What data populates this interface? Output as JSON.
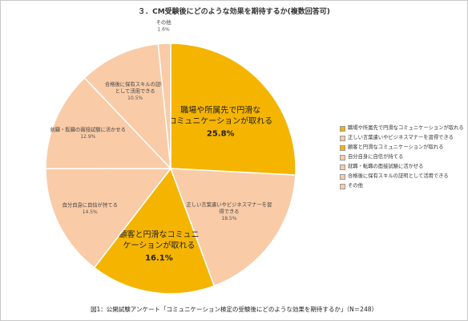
{
  "chart_data": {
    "type": "pie",
    "title": "３．CM受験後にどのような効果を期待するか(複数回答可)",
    "caption": "図1：公開試験アンケート「コミュニケーション検定の受験後にどのような効果を期待するか」（N＝248）",
    "legend_position": "right",
    "slices": [
      {
        "label": "職場や所属先で円滑なコミュニケーションが取れる",
        "display_label": "職場や所属先で円滑な\nコミュニケーションが取れる",
        "value": 25.8,
        "value_label": "25.8%",
        "color": "#f4b400",
        "highlight": true
      },
      {
        "label": "正しい言葉遣いやビジネスマナーを習得できる",
        "display_label": "正しい言葉遣いやビジネスマナーを習\n得できる",
        "value": 18.5,
        "value_label": "18.5%",
        "color": "#f9cba7",
        "highlight": false
      },
      {
        "label": "顧客と円滑なコミュニケーションが取れる",
        "display_label": "顧客と円滑なコミュニ\nケーションが取れる",
        "value": 16.1,
        "value_label": "16.1%",
        "color": "#f4b400",
        "highlight": true
      },
      {
        "label": "自分自身に自信が持てる",
        "display_label": "自分自身に自信が持てる",
        "value": 14.5,
        "value_label": "14.5%",
        "color": "#f9cba7",
        "highlight": false
      },
      {
        "label": "就職・転職の面接試験に活かせる",
        "display_label": "就職・転職の面接試験に活かせる",
        "value": 12.9,
        "value_label": "12.9%",
        "color": "#f9cba7",
        "highlight": false
      },
      {
        "label": "合格後に保有スキルの証明として活用できる",
        "display_label": "合格後に保有スキルの証明\nとして活用できる",
        "value": 10.5,
        "value_label": "10.5%",
        "color": "#f9cba7",
        "highlight": false
      },
      {
        "label": "その他",
        "display_label": "その他",
        "value": 1.6,
        "value_label": "1.6%",
        "color": "#f9cba7",
        "highlight": false
      }
    ]
  }
}
